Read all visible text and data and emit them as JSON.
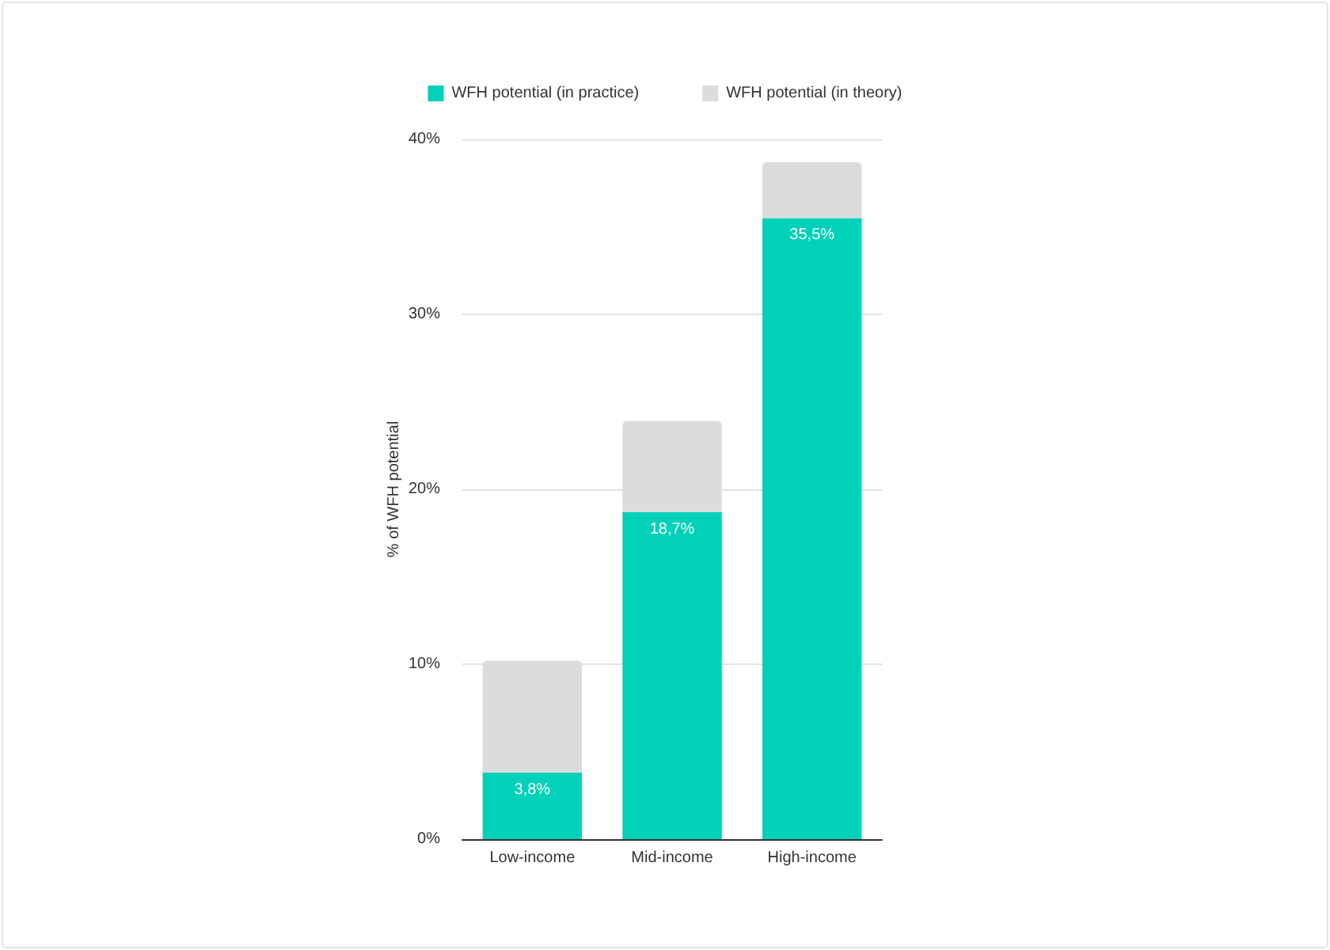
{
  "chart_data": {
    "type": "bar",
    "ylabel": "% of WFH potential",
    "categories": [
      "Low-income",
      "Mid-income",
      "High-income"
    ],
    "series": [
      {
        "name": "WFH potential (in practice)",
        "color": "#00d1b8",
        "values": [
          3.8,
          18.7,
          35.5
        ],
        "value_labels": [
          "3,8%",
          "18,7%",
          "35,5%"
        ]
      },
      {
        "name": "WFH potential (in theory)",
        "color": "#dcdcdc",
        "values": [
          6.4,
          5.2,
          3.2
        ]
      }
    ],
    "stacked": true,
    "ylim": [
      0,
      40
    ],
    "yticks": [
      {
        "value": 0,
        "label": "0%"
      },
      {
        "value": 10,
        "label": "10%"
      },
      {
        "value": 20,
        "label": "20%"
      },
      {
        "value": 30,
        "label": "30%"
      },
      {
        "value": 40,
        "label": "40%"
      }
    ],
    "grid": "y",
    "legend": "top"
  }
}
